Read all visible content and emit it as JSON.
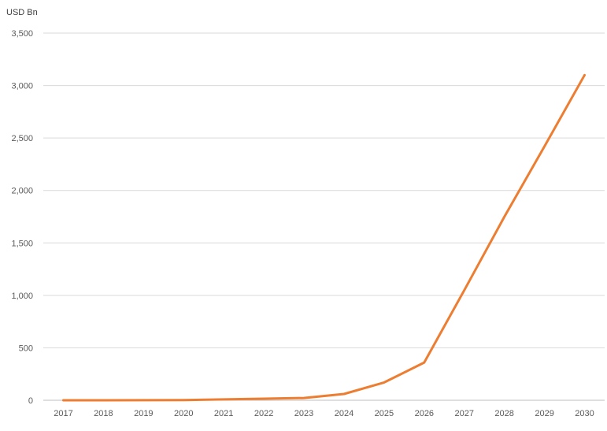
{
  "chart_data": {
    "type": "line",
    "title": "",
    "unit_label": "USD Bn",
    "xlabel": "",
    "ylabel": "",
    "x": [
      "2017",
      "2018",
      "2019",
      "2020",
      "2021",
      "2022",
      "2023",
      "2024",
      "2025",
      "2026",
      "2027",
      "2028",
      "2029",
      "2030"
    ],
    "series": [
      {
        "name": "",
        "color": "#ED7D31",
        "values": [
          0,
          0,
          1,
          2,
          8,
          15,
          22,
          60,
          170,
          360,
          1050,
          1750,
          2420,
          3100
        ]
      }
    ],
    "ylim": [
      0,
      3500
    ],
    "yticks": [
      0,
      500,
      1000,
      1500,
      2000,
      2500,
      3000,
      3500
    ],
    "ytick_labels": [
      "0",
      "500",
      "1,000",
      "1,500",
      "2,000",
      "2,500",
      "3,000",
      "3,500"
    ],
    "grid": "horizontal",
    "legend": "none"
  }
}
